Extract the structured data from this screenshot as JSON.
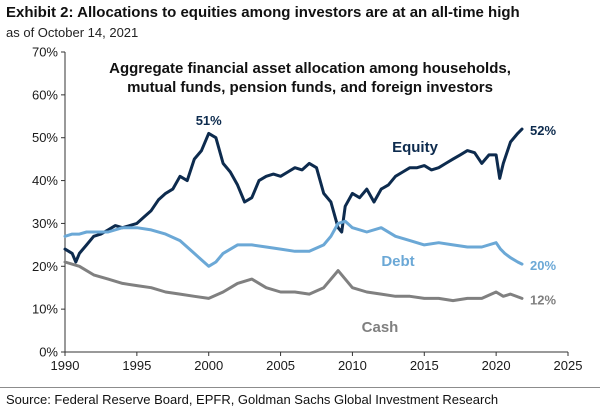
{
  "header": {
    "title": "Exhibit 2: Allocations to equities among investors are at an all-time high",
    "as_of": "as of October 14, 2021"
  },
  "footer": {
    "source": "Source: Federal Reserve Board, EPFR, Goldman Sachs Global Investment Research"
  },
  "chart_data": {
    "type": "line",
    "title_lines": [
      "Aggregate financial asset allocation among households,",
      "mutual funds, pension funds, and foreign investors"
    ],
    "xlim": [
      1990,
      2025
    ],
    "ylim": [
      0,
      70
    ],
    "x_ticks": [
      "1990",
      "1995",
      "2000",
      "2005",
      "2010",
      "2015",
      "2020",
      "2025"
    ],
    "y_ticks": [
      "0%",
      "10%",
      "20%",
      "30%",
      "40%",
      "50%",
      "60%",
      "70%"
    ],
    "grid": false,
    "series": [
      {
        "name": "Equity",
        "color": "#0d2b4e",
        "end_label": "52%",
        "points": [
          [
            1990,
            24
          ],
          [
            1990.5,
            23
          ],
          [
            1990.75,
            21
          ],
          [
            1991,
            23
          ],
          [
            1991.5,
            25
          ],
          [
            1992,
            27
          ],
          [
            1992.5,
            27.5
          ],
          [
            1993,
            28.5
          ],
          [
            1993.5,
            29.5
          ],
          [
            1994,
            29
          ],
          [
            1994.5,
            29.5
          ],
          [
            1995,
            30
          ],
          [
            1995.5,
            31.5
          ],
          [
            1996,
            33
          ],
          [
            1996.5,
            35.5
          ],
          [
            1997,
            37
          ],
          [
            1997.5,
            38
          ],
          [
            1998,
            41
          ],
          [
            1998.5,
            40
          ],
          [
            1999,
            45
          ],
          [
            1999.5,
            47
          ],
          [
            2000,
            51
          ],
          [
            2000.5,
            50
          ],
          [
            2001,
            44
          ],
          [
            2001.5,
            42
          ],
          [
            2002,
            39
          ],
          [
            2002.5,
            35
          ],
          [
            2003,
            36
          ],
          [
            2003.5,
            40
          ],
          [
            2004,
            41
          ],
          [
            2004.5,
            41.5
          ],
          [
            2005,
            41
          ],
          [
            2005.5,
            42
          ],
          [
            2006,
            43
          ],
          [
            2006.5,
            42.5
          ],
          [
            2007,
            44
          ],
          [
            2007.5,
            43
          ],
          [
            2008,
            37
          ],
          [
            2008.5,
            35
          ],
          [
            2009,
            29
          ],
          [
            2009.25,
            28
          ],
          [
            2009.5,
            34
          ],
          [
            2010,
            37
          ],
          [
            2010.5,
            36
          ],
          [
            2011,
            38
          ],
          [
            2011.5,
            35
          ],
          [
            2012,
            38
          ],
          [
            2012.5,
            39
          ],
          [
            2013,
            41
          ],
          [
            2013.5,
            42
          ],
          [
            2014,
            43
          ],
          [
            2014.5,
            43
          ],
          [
            2015,
            43.5
          ],
          [
            2015.5,
            42.5
          ],
          [
            2016,
            43
          ],
          [
            2016.5,
            44
          ],
          [
            2017,
            45
          ],
          [
            2017.5,
            46
          ],
          [
            2018,
            47
          ],
          [
            2018.5,
            46.5
          ],
          [
            2019,
            44
          ],
          [
            2019.5,
            46
          ],
          [
            2020,
            46
          ],
          [
            2020.25,
            40.5
          ],
          [
            2020.5,
            44
          ],
          [
            2021,
            49
          ],
          [
            2021.5,
            51
          ],
          [
            2021.8,
            52
          ]
        ]
      },
      {
        "name": "Debt",
        "color": "#6ba8d6",
        "end_label": "20%",
        "points": [
          [
            1990,
            27
          ],
          [
            1990.5,
            27.5
          ],
          [
            1991,
            27.5
          ],
          [
            1991.5,
            28
          ],
          [
            1992,
            28
          ],
          [
            1993,
            28
          ],
          [
            1994,
            29
          ],
          [
            1995,
            29
          ],
          [
            1996,
            28.5
          ],
          [
            1997,
            27.5
          ],
          [
            1998,
            26
          ],
          [
            1999,
            23
          ],
          [
            1999.5,
            21.5
          ],
          [
            2000,
            20
          ],
          [
            2000.5,
            21
          ],
          [
            2001,
            23
          ],
          [
            2002,
            25
          ],
          [
            2003,
            25
          ],
          [
            2004,
            24.5
          ],
          [
            2005,
            24
          ],
          [
            2006,
            23.5
          ],
          [
            2007,
            23.5
          ],
          [
            2008,
            25
          ],
          [
            2008.5,
            27
          ],
          [
            2009,
            30
          ],
          [
            2009.5,
            30.5
          ],
          [
            2010,
            29
          ],
          [
            2011,
            28
          ],
          [
            2012,
            29
          ],
          [
            2013,
            27
          ],
          [
            2014,
            26
          ],
          [
            2015,
            25
          ],
          [
            2016,
            25.5
          ],
          [
            2017,
            25
          ],
          [
            2018,
            24.5
          ],
          [
            2019,
            24.5
          ],
          [
            2020,
            25.5
          ],
          [
            2020.3,
            24
          ],
          [
            2020.6,
            23
          ],
          [
            2021,
            22
          ],
          [
            2021.5,
            21
          ],
          [
            2021.8,
            20.5
          ]
        ]
      },
      {
        "name": "Cash",
        "color": "#808080",
        "end_label": "12%",
        "points": [
          [
            1990,
            21
          ],
          [
            1991,
            20
          ],
          [
            1992,
            18
          ],
          [
            1993,
            17
          ],
          [
            1994,
            16
          ],
          [
            1995,
            15.5
          ],
          [
            1996,
            15
          ],
          [
            1997,
            14
          ],
          [
            1998,
            13.5
          ],
          [
            1999,
            13
          ],
          [
            2000,
            12.5
          ],
          [
            2001,
            14
          ],
          [
            2002,
            16
          ],
          [
            2003,
            17
          ],
          [
            2004,
            15
          ],
          [
            2005,
            14
          ],
          [
            2006,
            14
          ],
          [
            2007,
            13.5
          ],
          [
            2008,
            15
          ],
          [
            2009,
            19
          ],
          [
            2009.5,
            17
          ],
          [
            2010,
            15
          ],
          [
            2011,
            14
          ],
          [
            2012,
            13.5
          ],
          [
            2013,
            13
          ],
          [
            2014,
            13
          ],
          [
            2015,
            12.5
          ],
          [
            2016,
            12.5
          ],
          [
            2017,
            12
          ],
          [
            2018,
            12.5
          ],
          [
            2019,
            12.5
          ],
          [
            2020,
            14
          ],
          [
            2020.5,
            13
          ],
          [
            2021,
            13.5
          ],
          [
            2021.8,
            12.5
          ]
        ]
      }
    ],
    "annotations": [
      {
        "text": "51%",
        "x": 2000,
        "y": 53,
        "color": "#0d2b4e"
      }
    ]
  }
}
